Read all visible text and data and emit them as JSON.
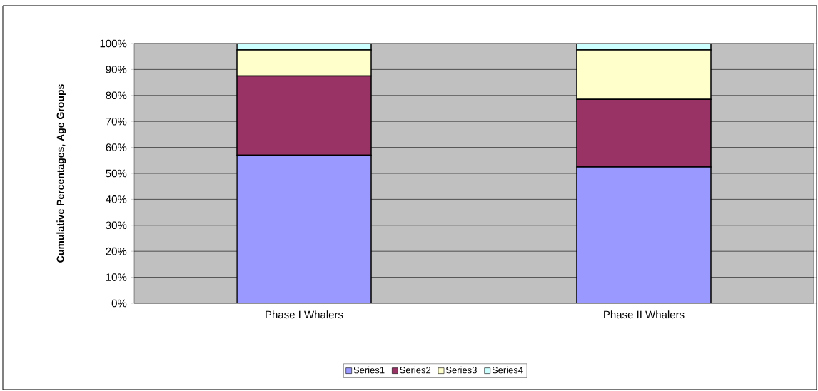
{
  "chart_data": {
    "type": "bar",
    "stacked": true,
    "ylabel": "Cumulative Percentages, Age Groups",
    "categories": [
      "Phase I Whalers",
      "Phase II Whalers"
    ],
    "series": [
      {
        "name": "Series1",
        "color": "#9999ff",
        "values": [
          57,
          52.5
        ]
      },
      {
        "name": "Series2",
        "color": "#993366",
        "values": [
          30.5,
          26
        ]
      },
      {
        "name": "Series3",
        "color": "#ffffcc",
        "values": [
          10,
          19
        ]
      },
      {
        "name": "Series4",
        "color": "#ccffff",
        "values": [
          2.5,
          2.5
        ]
      }
    ],
    "ylim": [
      0,
      100
    ],
    "yticks": [
      {
        "value": 0,
        "label": "0%"
      },
      {
        "value": 10,
        "label": "10%"
      },
      {
        "value": 20,
        "label": "20%"
      },
      {
        "value": 30,
        "label": "30%"
      },
      {
        "value": 40,
        "label": "40%"
      },
      {
        "value": 50,
        "label": "50%"
      },
      {
        "value": 60,
        "label": "60%"
      },
      {
        "value": 70,
        "label": "70%"
      },
      {
        "value": 80,
        "label": "80%"
      },
      {
        "value": 90,
        "label": "90%"
      },
      {
        "value": 100,
        "label": "100%"
      }
    ],
    "grid": "y",
    "legend": "bottom"
  }
}
